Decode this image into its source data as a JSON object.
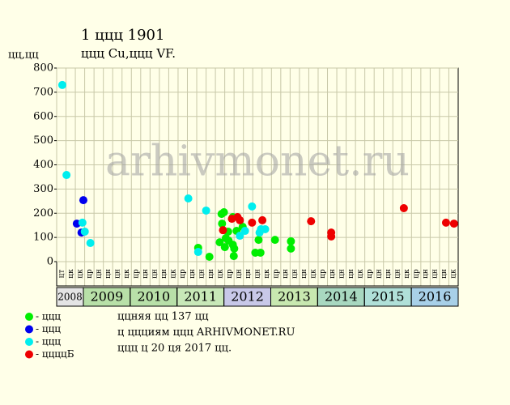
{
  "chart_data": {
    "type": "scatter",
    "title": "1 ццц 1901",
    "subtitle": "ццц Cu,ццц VF.",
    "y_label": "цц,цц",
    "xlim": [
      2008.43,
      2017.0
    ],
    "xticks": [
      2009,
      2010,
      2011,
      2012,
      2013,
      2014,
      2015,
      2016
    ],
    "ylim": [
      0,
      800
    ],
    "yticks": [
      0,
      100,
      200,
      300,
      400,
      500,
      600,
      700,
      800
    ],
    "grid": true,
    "watermark": "arhivmonet.ru",
    "columns": [
      "цт",
      "цк",
      "цк",
      "цр",
      "цн",
      "цн",
      "цн",
      "цк",
      "цр",
      "цн",
      "цн",
      "цн",
      "цк",
      "цр",
      "цн",
      "цн",
      "цн",
      "цк",
      "цр",
      "цн",
      "цн",
      "цн",
      "цк",
      "цр",
      "цн",
      "цн",
      "цн",
      "цк",
      "цр",
      "цн",
      "цн",
      "цн",
      "цк",
      "цр",
      "цн",
      "цн",
      "цн",
      "цк",
      "цр",
      "цн",
      "цн",
      "цн",
      "цк"
    ],
    "year_labels": [
      {
        "label": "2008",
        "color": "#e4e4e4"
      },
      {
        "label": "2009",
        "color": "#b8e0a8"
      },
      {
        "label": "2010",
        "color": "#b8e0a8"
      },
      {
        "label": "2011",
        "color": "#c8e8b8"
      },
      {
        "label": "2012",
        "color": "#c8c8e8"
      },
      {
        "label": "2013",
        "color": "#c8e8b0"
      },
      {
        "label": "2014",
        "color": "#a8d8c0"
      },
      {
        "label": "2015",
        "color": "#b0e0d8"
      },
      {
        "label": "2016",
        "color": "#a8d0e8"
      }
    ],
    "series": [
      {
        "name": "- ццц",
        "color": "#00ee00",
        "x": [
          2011.45,
          2011.69,
          2011.91,
          2011.96,
          2011.95,
          2012.0,
          2012.02,
          2012.04,
          2012.09,
          2012.1,
          2012.19,
          2012.19,
          2012.21,
          2012.22,
          2012.27,
          2012.4,
          2012.67,
          2012.74,
          2012.78,
          2013.09,
          2013.43,
          2013.43
        ],
        "values": [
          57,
          20,
          80,
          157,
          197,
          204,
          60,
          97,
          124,
          87,
          184,
          70,
          23,
          54,
          127,
          144,
          37,
          90,
          37,
          90,
          84,
          54
        ]
      },
      {
        "name": "- ццц",
        "color": "#0000ee",
        "x": [
          2008.86,
          2009.0,
          2008.96
        ],
        "values": [
          157,
          254,
          120
        ]
      },
      {
        "name": "- ццц",
        "color": "#00eeee",
        "x": [
          2008.55,
          2008.64,
          2008.98,
          2009.03,
          2009.15,
          2011.24,
          2011.45,
          2011.62,
          2012.34,
          2012.45,
          2012.6,
          2012.76,
          2012.79,
          2012.88
        ],
        "values": [
          730,
          358,
          161,
          124,
          77,
          261,
          40,
          211,
          107,
          127,
          228,
          120,
          134,
          134
        ]
      },
      {
        "name": "- ццццБ",
        "color": "#ee0000",
        "x": [
          2011.98,
          2012.17,
          2012.29,
          2012.34,
          2012.6,
          2012.82,
          2013.86,
          2014.29,
          2014.29,
          2015.84,
          2016.74,
          2016.91
        ],
        "values": [
          130,
          177,
          184,
          171,
          161,
          171,
          167,
          120,
          104,
          221,
          161,
          157
        ]
      }
    ],
    "notes": [
      "ццняя цц 137 цц",
      "ц ццциям ццц ARHIVMONET.RU",
      "ццц ц 20 ця 2017 цц."
    ]
  }
}
